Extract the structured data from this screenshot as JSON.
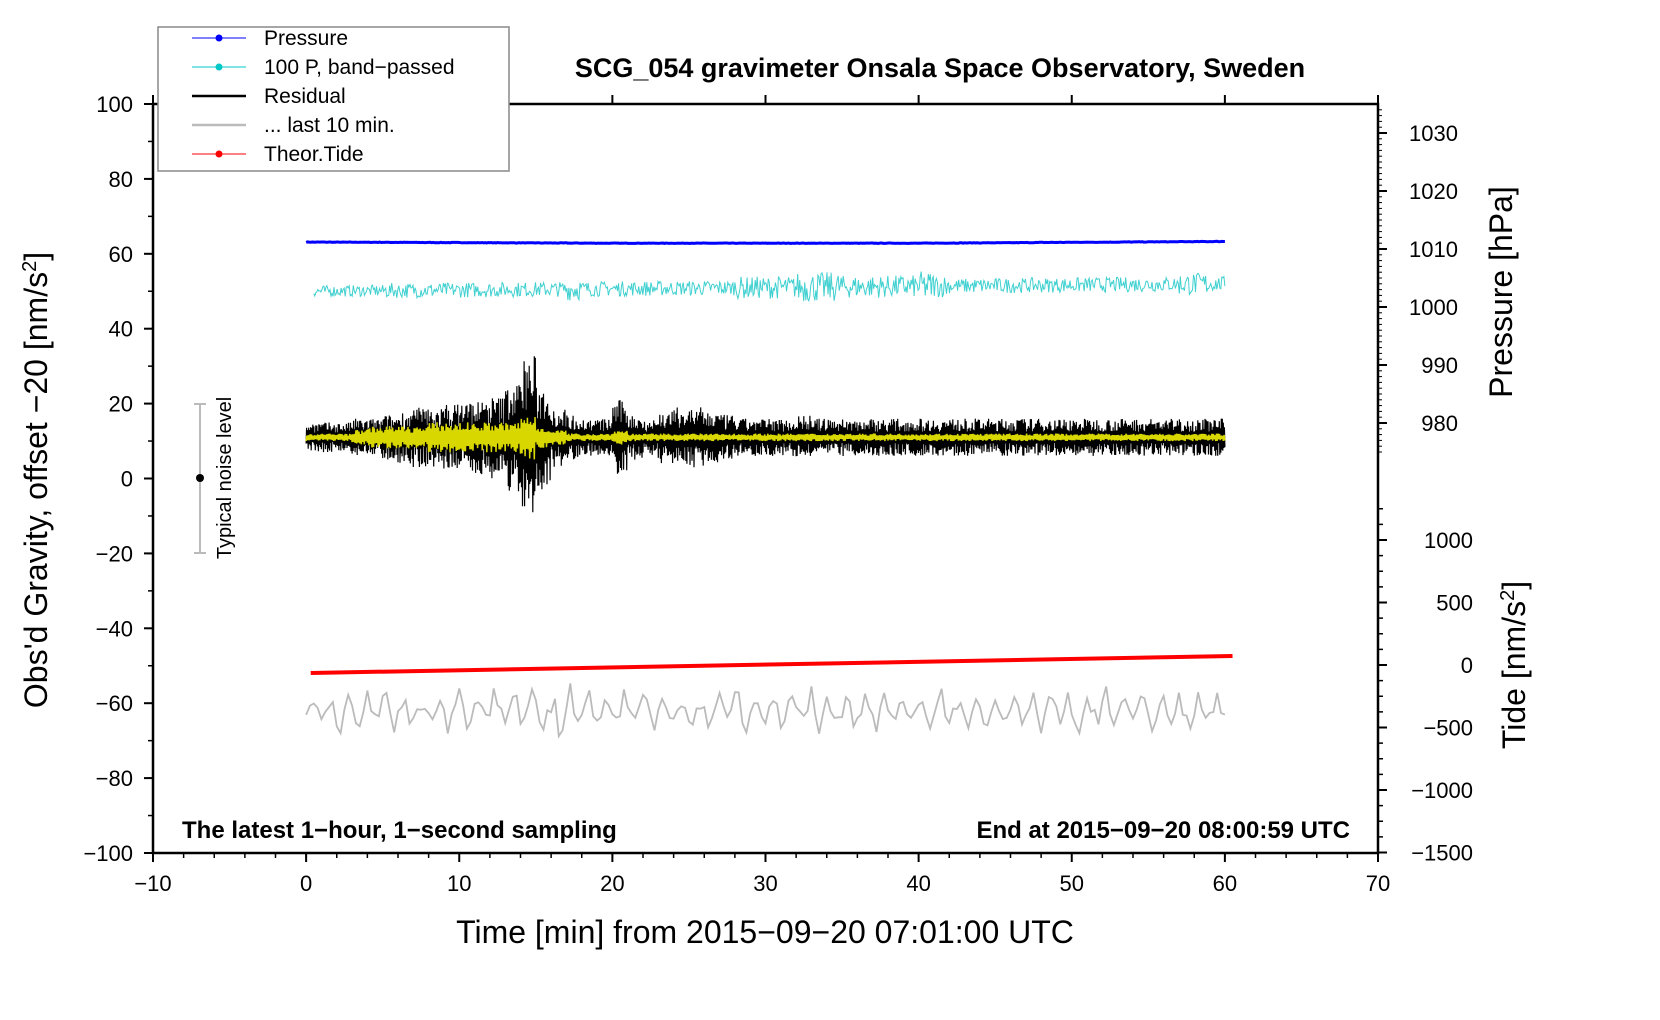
{
  "chart_data": {
    "type": "line",
    "title": "SCG_054 gravimeter Onsala Space Observatory, Sweden",
    "xlabel": "Time [min] from 2015−09−20 07:01:00 UTC",
    "ylabel": "Obs'd Gravity, offset −20 [nm/s",
    "ylabel_sup": "2",
    "ylabel_end": "]",
    "y2label": "Pressure [hPa]",
    "y3label": "Tide [nm/s",
    "y3label_sup": "2",
    "y3label_end": "]",
    "xlim": [
      -10,
      70
    ],
    "ylim": [
      -100,
      100
    ],
    "pressure_lim": [
      980,
      1030
    ],
    "tide_lim": [
      -1500,
      1000
    ],
    "xticks": [
      "−10",
      "0",
      "10",
      "20",
      "30",
      "40",
      "50",
      "60",
      "70"
    ],
    "yticks": [
      "100",
      "80",
      "60",
      "40",
      "20",
      "0",
      "−20",
      "−40",
      "−60",
      "−80",
      "−100"
    ],
    "pressure_ticks": [
      "1030",
      "1020",
      "1010",
      "1000",
      "990",
      "980"
    ],
    "tide_ticks": [
      "1000",
      "500",
      "0",
      "−500",
      "−1000",
      "−1500"
    ],
    "annotation_left": "The latest 1−hour, 1−second sampling",
    "annotation_right": "End at 2015−09−20 08:00:59 UTC",
    "noise_label": "Typical noise level",
    "noise_bar": {
      "x": -7,
      "center": 0,
      "range": [
        -20,
        20
      ]
    },
    "legend": [
      {
        "label": "Pressure",
        "color": "#0000ff",
        "marker": true
      },
      {
        "label": "100 P, band−passed",
        "color": "#00c8c8",
        "marker": true
      },
      {
        "label": "Residual",
        "color": "#000000",
        "marker": false
      },
      {
        "label": "... last 10 min.",
        "color": "#bbbbbb",
        "marker": false
      },
      {
        "label": "Theor.Tide",
        "color": "#ff0000",
        "marker": true
      }
    ],
    "series": {
      "pressure_hPa": {
        "x": [
          0,
          20,
          40,
          60
        ],
        "values": [
          1011.2,
          1011.0,
          1011.0,
          1011.3
        ],
        "color": "#0000ff"
      },
      "pressure_bandpassed_gravity_units": {
        "x": [
          0,
          60
        ],
        "center": [
          50,
          52
        ],
        "amplitude_by_minute": [
          1.5,
          1.5,
          1.5,
          1.5,
          1.5,
          2,
          2,
          2,
          2,
          2,
          2,
          2,
          2,
          2,
          2,
          2,
          2,
          3,
          2,
          2,
          2,
          2,
          2,
          2,
          2,
          2,
          2,
          2,
          3,
          3,
          3,
          3,
          4,
          4,
          4,
          3,
          3,
          3,
          3,
          3,
          4,
          3,
          2,
          2,
          2,
          2,
          2,
          2,
          2,
          2,
          2,
          2,
          2,
          2,
          2,
          2,
          2,
          3,
          3,
          2,
          2
        ],
        "color": "#40d0d0"
      },
      "residual": {
        "center": 11,
        "amplitude_by_minute": [
          4,
          4,
          4,
          5,
          5,
          6,
          7,
          8,
          8,
          9,
          10,
          10,
          11,
          15,
          22,
          14,
          8,
          6,
          5,
          5,
          10,
          6,
          5,
          7,
          8,
          8,
          7,
          6,
          5,
          5,
          5,
          5,
          6,
          5,
          5,
          5,
          5,
          5,
          5,
          5,
          5,
          5,
          5,
          5,
          5,
          5,
          5,
          5,
          5,
          5,
          5,
          5,
          5,
          5,
          5,
          5,
          5,
          5,
          5,
          5,
          5
        ],
        "color": "#000000"
      },
      "residual_smoothed": {
        "center": 11,
        "amplitude_by_minute": [
          1,
          1,
          1,
          2,
          3,
          3,
          3,
          3,
          4,
          4,
          4,
          4,
          4,
          4,
          6,
          3,
          2,
          1,
          1,
          1,
          2,
          1,
          1,
          1,
          1,
          1,
          1,
          1,
          1,
          1,
          1,
          1,
          1,
          1,
          1,
          1,
          1,
          1,
          1,
          1,
          1,
          1,
          1,
          1,
          1,
          1,
          1,
          1,
          1,
          1,
          1,
          1,
          1,
          1,
          1,
          1,
          1,
          1,
          1,
          1,
          1
        ],
        "color": "#d8d800"
      },
      "last_10_min": {
        "center": -62,
        "amplitude": 5,
        "color": "#bbbbbb"
      },
      "theoretical_tide": {
        "x": [
          0,
          60.5
        ],
        "values": [
          -64,
          72
        ],
        "color": "#ff0000"
      }
    }
  }
}
